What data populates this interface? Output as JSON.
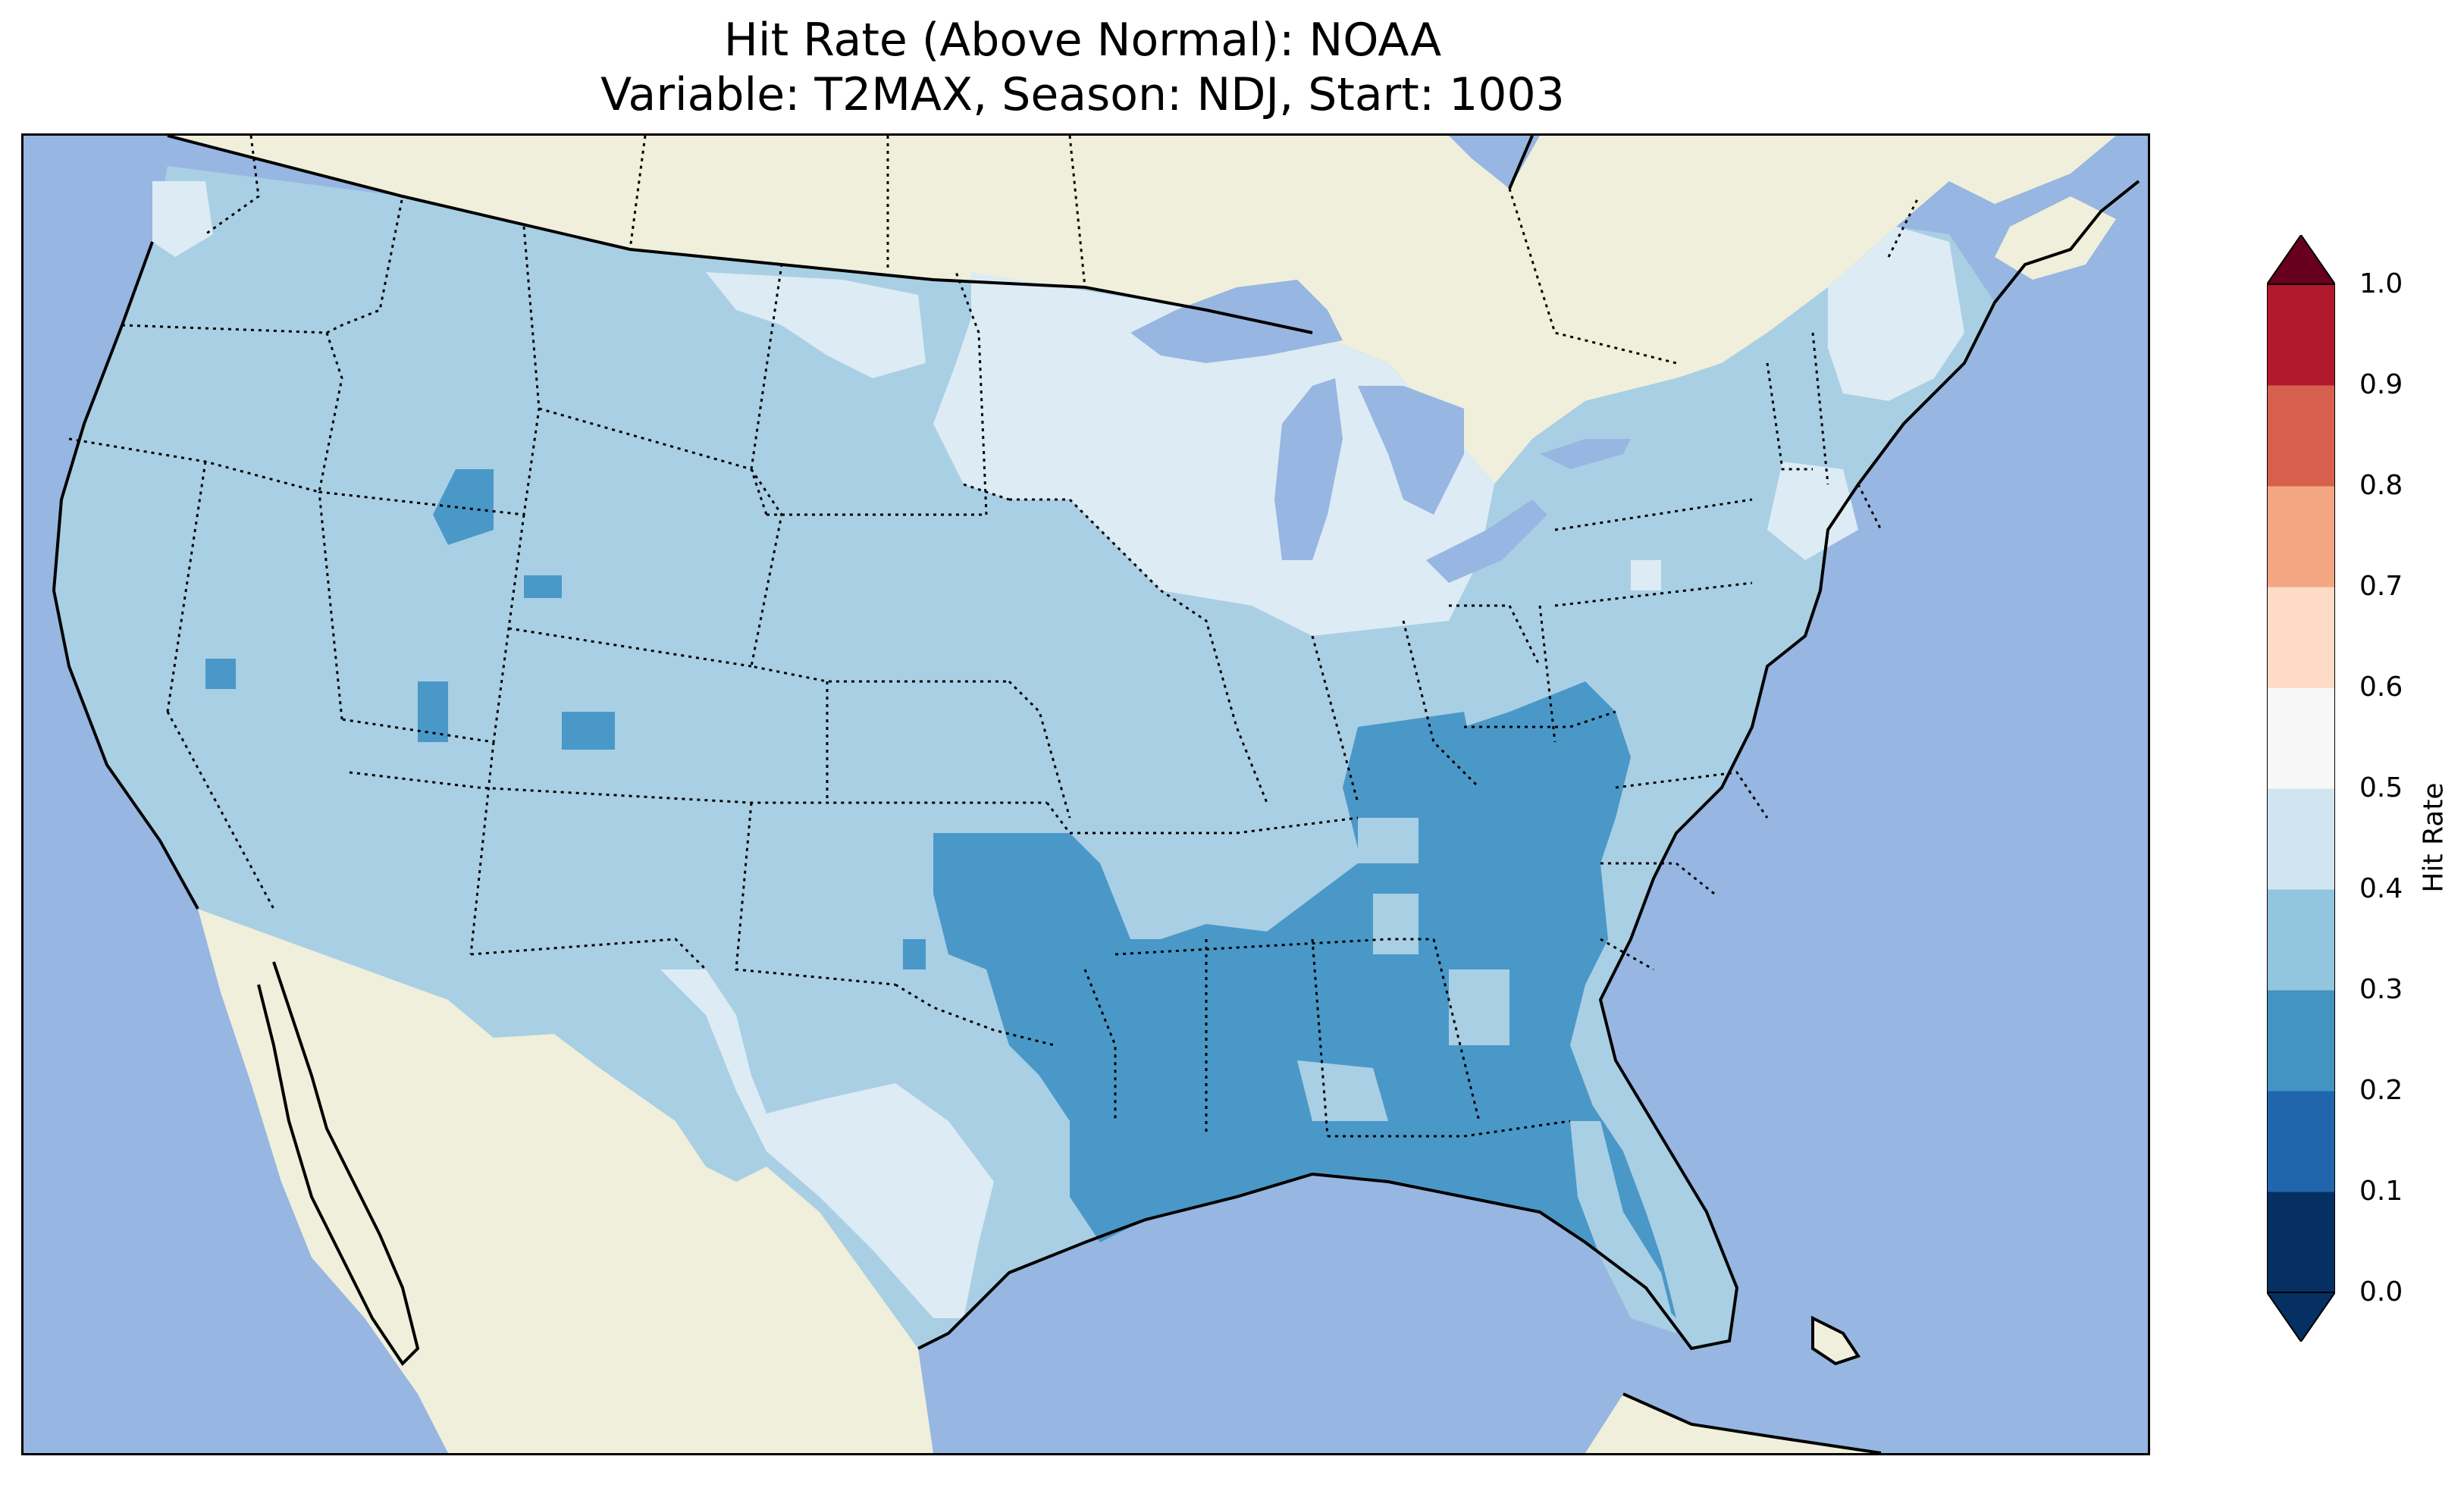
{
  "title": {
    "line1": "Hit Rate (Above Normal): NOAA",
    "line2": "Variable: T2MAX, Season: NDJ, Start: 1003"
  },
  "colors": {
    "ocean": "#97b6e1",
    "land": "#efefdb",
    "bins": [
      "#053061",
      "#2166ac",
      "#4393c3",
      "#92c5de",
      "#d1e5f0",
      "#f7f7f7",
      "#fddbc7",
      "#f4a582",
      "#d6604d",
      "#b2182b",
      "#67001f"
    ],
    "under": "#053061",
    "over": "#67001f"
  },
  "colorbar": {
    "label": "Hit Rate",
    "ticks": [
      "0.0",
      "0.1",
      "0.2",
      "0.3",
      "0.4",
      "0.5",
      "0.6",
      "0.7",
      "0.8",
      "0.9",
      "1.0"
    ],
    "boundaries": [
      0.0,
      0.1,
      0.2,
      0.3,
      0.4,
      0.5,
      0.6,
      0.7,
      0.8,
      0.9,
      1.0
    ]
  },
  "regions": [
    {
      "name": "Contiguous US (most areas)",
      "value": "0.3-0.4"
    },
    {
      "name": "Upper Midwest / Great Lakes / Minnesota / Wisconsin / Michigan",
      "value": "0.4-0.5"
    },
    {
      "name": "West Texas / Texas Hill Country",
      "value": "0.4-0.5"
    },
    {
      "name": "Northern New England / Maine",
      "value": "0.4-0.5"
    },
    {
      "name": "Lower Mississippi Valley / Gulf Coast / Southeast",
      "value": "0.2-0.3"
    },
    {
      "name": "Florida peninsula interior",
      "value": "0.2-0.3"
    },
    {
      "name": "Tennessee / Carolinas interior",
      "value": "0.2-0.3"
    },
    {
      "name": "Scattered cells in Idaho, Utah, Nevada",
      "value": "0.2-0.3"
    }
  ]
}
